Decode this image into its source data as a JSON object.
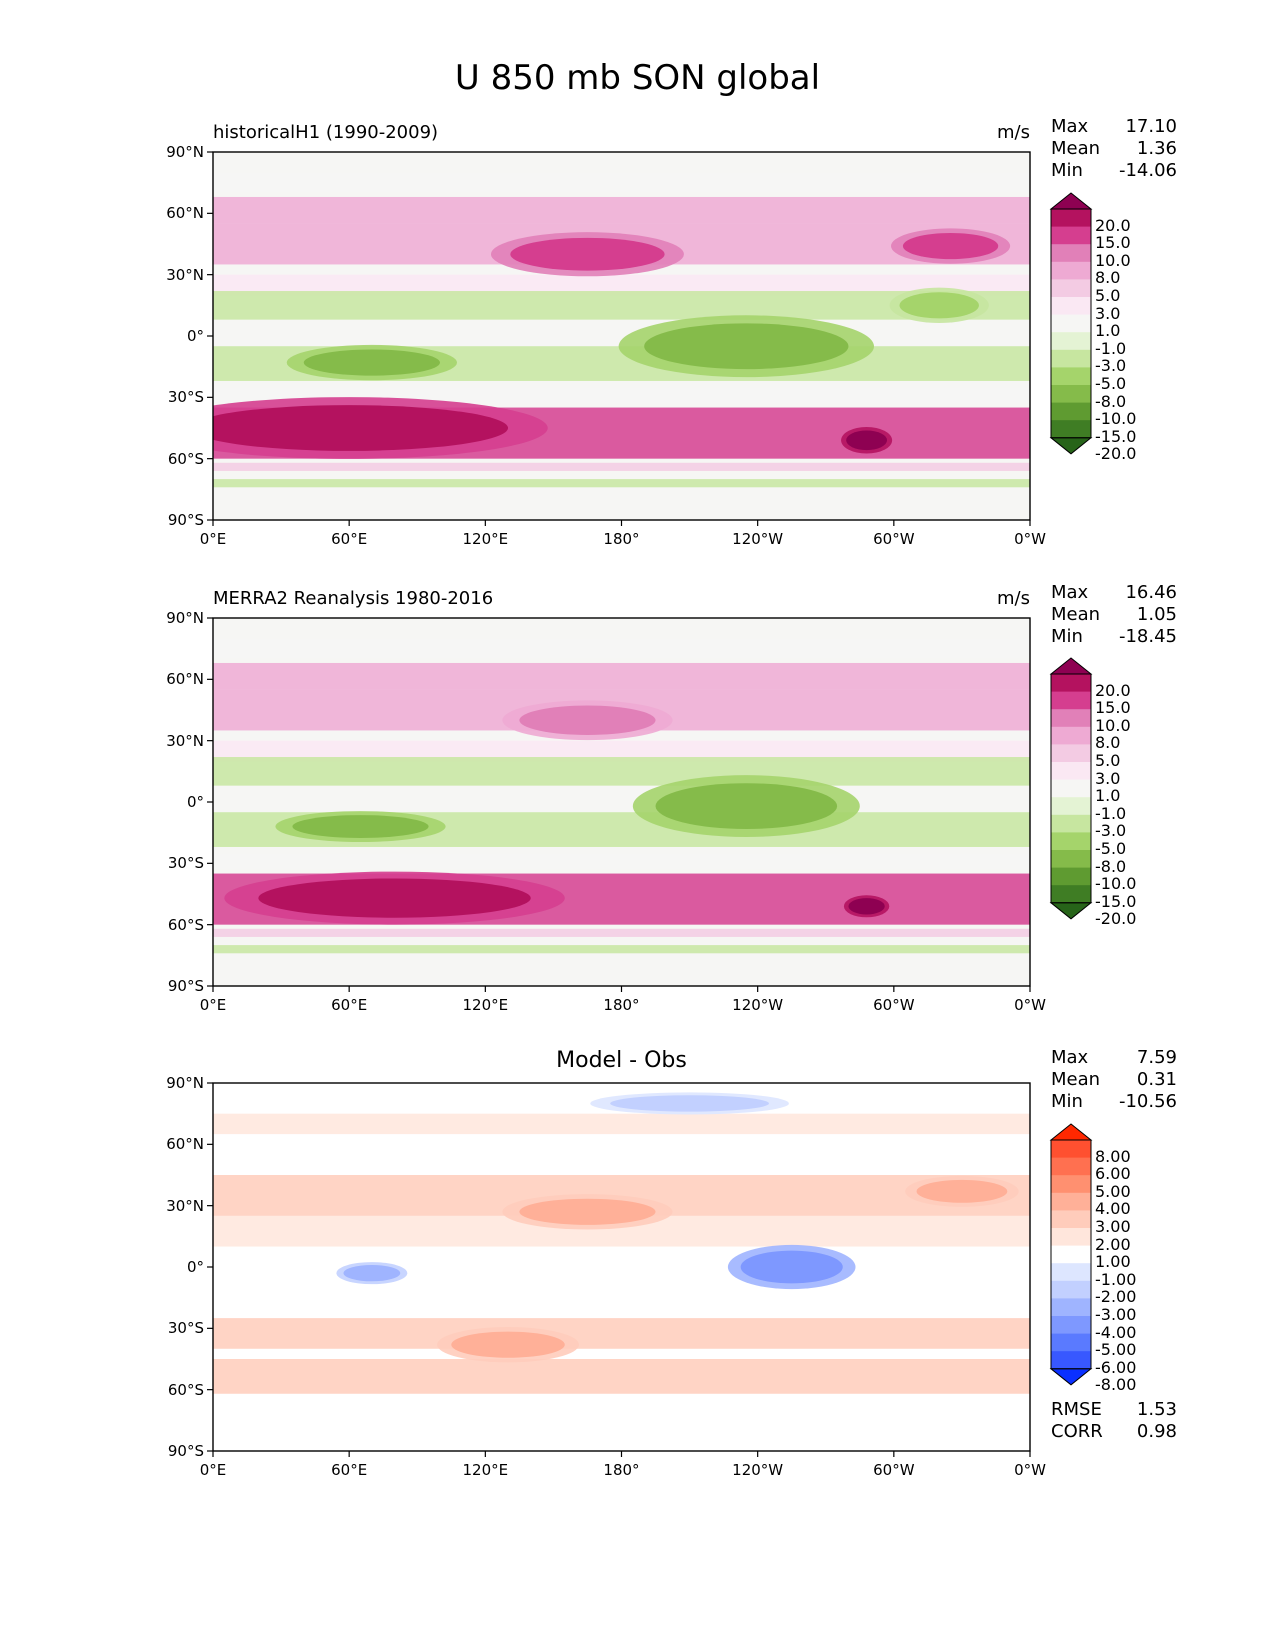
{
  "figure_title": "U 850 mb SON global",
  "chart_data": [
    {
      "type": "contour_map",
      "id": "model",
      "title_left": "historicalH1 (1990-2009)",
      "units": "m/s",
      "stats": {
        "Max": "17.10",
        "Mean": "1.36",
        "Min": "-14.06"
      },
      "x_ticks": [
        "0°E",
        "60°E",
        "120°E",
        "180°",
        "120°W",
        "60°W",
        "0°W"
      ],
      "y_ticks": [
        "90°N",
        "60°N",
        "30°N",
        "0°",
        "30°S",
        "60°S",
        "90°S"
      ],
      "xlim": [
        0,
        360
      ],
      "ylim": [
        -90,
        90
      ],
      "colorbar": {
        "labels": [
          "20.0",
          "15.0",
          "10.0",
          "8.0",
          "5.0",
          "3.0",
          "1.0",
          "-1.0",
          "-3.0",
          "-5.0",
          "-8.0",
          "-10.0",
          "-15.0",
          "-20.0"
        ],
        "colors": [
          "#8e0152",
          "#b4125f",
          "#d53e8f",
          "#e180b8",
          "#eeaad3",
          "#f3cbe3",
          "#fae8f3",
          "#f6f6f4",
          "#e4f3d4",
          "#c7e6a0",
          "#a5d46b",
          "#85bb4a",
          "#5f9b31",
          "#3f7d24",
          "#276419"
        ],
        "extend": "both"
      },
      "features": [
        {
          "label": "westerly jet N Pacific",
          "lon": 165,
          "lat": 40,
          "w": 68,
          "h": 10,
          "level": 12
        },
        {
          "label": "westerly jet N Atlantic",
          "lon": 325,
          "lat": 44,
          "w": 42,
          "h": 8,
          "level": 12
        },
        {
          "label": "S Hemisphere westerly jet west",
          "lon": 60,
          "lat": -45,
          "w": 140,
          "h": 14,
          "level": 13
        },
        {
          "label": "Drake Passage jet",
          "lon": 288,
          "lat": -51,
          "w": 18,
          "h": 6,
          "level": 14
        },
        {
          "label": "Pacific trade easterlies",
          "lon": 235,
          "lat": -5,
          "w": 90,
          "h": 14,
          "level": 3
        },
        {
          "label": "Indian Ocean easterlies",
          "lon": 70,
          "lat": -13,
          "w": 60,
          "h": 8,
          "level": 3
        },
        {
          "label": "Atlantic trades",
          "lon": 320,
          "lat": 15,
          "w": 35,
          "h": 8,
          "level": 4
        }
      ]
    },
    {
      "type": "contour_map",
      "id": "obs",
      "title_left": "MERRA2 Reanalysis 1980-2016",
      "units": "m/s",
      "stats": {
        "Max": "16.46",
        "Mean": "1.05",
        "Min": "-18.45"
      },
      "x_ticks": [
        "0°E",
        "60°E",
        "120°E",
        "180°",
        "120°W",
        "60°W",
        "0°W"
      ],
      "y_ticks": [
        "90°N",
        "60°N",
        "30°N",
        "0°",
        "30°S",
        "60°S",
        "90°S"
      ],
      "xlim": [
        0,
        360
      ],
      "ylim": [
        -90,
        90
      ],
      "colorbar": {
        "labels": [
          "20.0",
          "15.0",
          "10.0",
          "8.0",
          "5.0",
          "3.0",
          "1.0",
          "-1.0",
          "-3.0",
          "-5.0",
          "-8.0",
          "-10.0",
          "-15.0",
          "-20.0"
        ],
        "colors": [
          "#8e0152",
          "#b4125f",
          "#d53e8f",
          "#e180b8",
          "#eeaad3",
          "#f3cbe3",
          "#fae8f3",
          "#f6f6f4",
          "#e4f3d4",
          "#c7e6a0",
          "#a5d46b",
          "#85bb4a",
          "#5f9b31",
          "#3f7d24",
          "#276419"
        ],
        "extend": "both"
      },
      "features": [
        {
          "label": "westerly jet N Pacific",
          "lon": 165,
          "lat": 40,
          "w": 60,
          "h": 9,
          "level": 11
        },
        {
          "label": "S Hemisphere westerly jet",
          "lon": 80,
          "lat": -47,
          "w": 120,
          "h": 12,
          "level": 13
        },
        {
          "label": "Drake Passage jet",
          "lon": 288,
          "lat": -51,
          "w": 16,
          "h": 5,
          "level": 14
        },
        {
          "label": "Pacific trade easterlies",
          "lon": 235,
          "lat": -2,
          "w": 80,
          "h": 14,
          "level": 3
        },
        {
          "label": "Indian Ocean easterlies",
          "lon": 65,
          "lat": -12,
          "w": 60,
          "h": 7,
          "level": 3
        }
      ]
    },
    {
      "type": "contour_map",
      "id": "diff",
      "title_center": "Model - Obs",
      "stats": {
        "Max": "7.59",
        "Mean": "0.31",
        "Min": "-10.56"
      },
      "metrics": {
        "RMSE": "1.53",
        "CORR": "0.98"
      },
      "x_ticks": [
        "0°E",
        "60°E",
        "120°E",
        "180°",
        "120°W",
        "60°W",
        "0°W"
      ],
      "y_ticks": [
        "90°N",
        "60°N",
        "30°N",
        "0°",
        "30°S",
        "60°S",
        "90°S"
      ],
      "xlim": [
        0,
        360
      ],
      "ylim": [
        -90,
        90
      ],
      "colorbar": {
        "labels": [
          "8.00",
          "6.00",
          "5.00",
          "4.00",
          "3.00",
          "2.00",
          "1.00",
          "-1.00",
          "-2.00",
          "-3.00",
          "-4.00",
          "-5.00",
          "-6.00",
          "-8.00"
        ],
        "colors": [
          "#ff2800",
          "#ff5030",
          "#ff7050",
          "#ff9070",
          "#ffb098",
          "#ffccbb",
          "#ffe6dc",
          "#ffffff",
          "#dde6ff",
          "#c2d0ff",
          "#9fb4ff",
          "#7e98ff",
          "#5a7aff",
          "#3858ff",
          "#0a30ff"
        ],
        "extend": "both"
      },
      "features": [
        {
          "label": "E Pacific negative bias",
          "lon": 255,
          "lat": 0,
          "w": 45,
          "h": 10,
          "level": 3
        },
        {
          "label": "Indian Ocean negative bias",
          "lon": 70,
          "lat": -3,
          "w": 25,
          "h": 5,
          "level": 4
        },
        {
          "label": "Australian positive bias",
          "lon": 130,
          "lat": -38,
          "w": 50,
          "h": 8,
          "level": 10
        },
        {
          "label": "N Pacific positive bias",
          "lon": 165,
          "lat": 27,
          "w": 60,
          "h": 8,
          "level": 10
        },
        {
          "label": "N Atlantic positive bias",
          "lon": 330,
          "lat": 37,
          "w": 40,
          "h": 7,
          "level": 10
        },
        {
          "label": "Arctic negative bias",
          "lon": 210,
          "lat": 80,
          "w": 70,
          "h": 5,
          "level": 5
        }
      ]
    }
  ]
}
